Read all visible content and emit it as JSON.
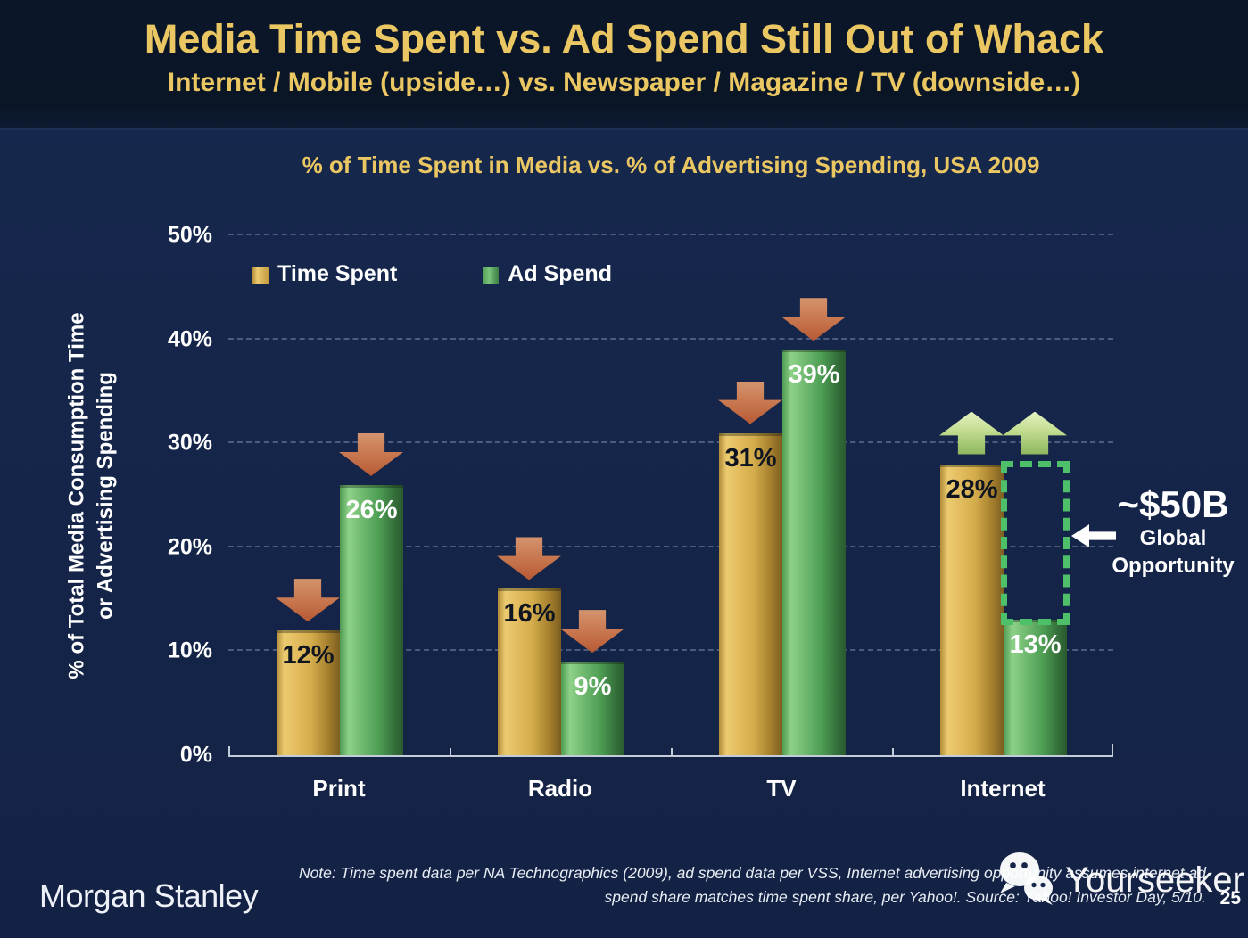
{
  "header": {
    "title": "Media Time Spent vs. Ad Spend Still Out of Whack",
    "subtitle": "Internet / Mobile (upside…) vs. Newspaper / Magazine / TV (downside…)"
  },
  "chart_data": {
    "type": "bar",
    "title": "% of Time Spent in Media vs. % of Advertising Spending, USA 2009",
    "categories": [
      "Print",
      "Radio",
      "TV",
      "Internet"
    ],
    "series": [
      {
        "name": "Time Spent",
        "values": [
          12,
          16,
          31,
          28
        ],
        "trend": [
          "down",
          "down",
          "down",
          "up"
        ],
        "bar_color": "#D9B254",
        "label_color": "black"
      },
      {
        "name": "Ad Spend",
        "values": [
          26,
          9,
          39,
          13
        ],
        "trend": [
          "down",
          "down",
          "down",
          "up"
        ],
        "bar_color": "#57A55C",
        "label_color": "white"
      }
    ],
    "value_label_suffix": "%",
    "ylabel_line1": "% of Total Media Consumption Time",
    "ylabel_line2": "or Advertising Spending",
    "yticks": [
      "0%",
      "10%",
      "20%",
      "30%",
      "40%",
      "50%"
    ],
    "ylim": [
      0,
      50
    ],
    "grid": "dashed horizontal",
    "legend_position": "top-left inside",
    "gap": {
      "category": "Internet",
      "value": "~$50B",
      "line1": "Global",
      "line2": "Opportunity"
    },
    "colors": {
      "accent_gold": "#EAC762",
      "time_spent_bar": "#D9B254",
      "ad_spend_bar": "#57A55C",
      "decline_arrow": "#C2714A",
      "growth_arrow": "#B9D48C",
      "gap_border": "#4EC065",
      "background": "#15264A",
      "header_background": "#0A1526"
    }
  },
  "footer": {
    "brand": "Morgan Stanley",
    "note_line1": "Note: Time spent data per NA Technographics (2009), ad spend data per VSS, Internet advertising opportunity assumes internet ad",
    "note_line2": "spend share matches time spent share, per Yahoo!. Source: Yahoo! Investor Day, 5/10.",
    "page_number": "25"
  },
  "watermark": {
    "text": "Yourseeker",
    "icon": "wechat-icon"
  }
}
